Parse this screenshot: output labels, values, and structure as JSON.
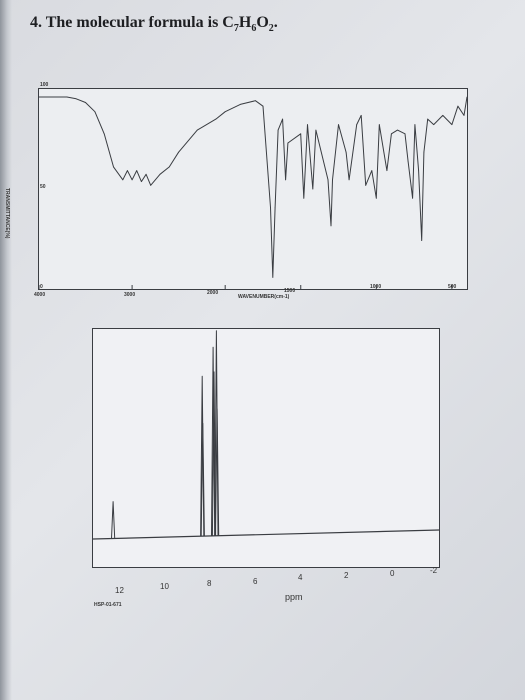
{
  "document": {
    "question_number": "4.",
    "question_text": "The molecular formula is C",
    "formula_parts": [
      "7",
      "H",
      "6",
      "O",
      "2",
      "."
    ]
  },
  "ir_spectrum": {
    "y_axis_label": "TRANSMITTANCE(%)",
    "y_ticks": [
      "100",
      "50",
      "0"
    ],
    "x_ticks": [
      "4000",
      "3000",
      "2000",
      "1500",
      "1000",
      "500"
    ],
    "x_axis_label": "WAVENUMBER(cm-1)"
  },
  "nmr_spectrum": {
    "x_ticks": [
      "12",
      "10",
      "8",
      "6",
      "4",
      "2",
      "0",
      "-2"
    ],
    "x_axis_label": "ppm",
    "code": "HSP-01-671"
  },
  "colors": {
    "trace": "#3a3d42",
    "frame": "#3a3d42",
    "paper": "#e2e4e8"
  },
  "chart_data": [
    {
      "type": "line",
      "title": "",
      "xlabel": "WAVENUMBER(cm-1)",
      "ylabel": "TRANSMITTANCE(%)",
      "xlim": [
        4000,
        400
      ],
      "ylim": [
        0,
        100
      ],
      "grid": false,
      "x": [
        4000,
        3700,
        3600,
        3500,
        3400,
        3300,
        3200,
        3100,
        3050,
        3000,
        2950,
        2900,
        2850,
        2800,
        2700,
        2600,
        2500,
        2300,
        2100,
        2000,
        1900,
        1800,
        1750,
        1700,
        1685,
        1670,
        1650,
        1620,
        1600,
        1585,
        1500,
        1480,
        1455,
        1420,
        1400,
        1320,
        1300,
        1290,
        1250,
        1200,
        1180,
        1130,
        1100,
        1070,
        1030,
        1000,
        980,
        930,
        900,
        860,
        810,
        790,
        760,
        745,
        720,
        700,
        685,
        660,
        620,
        560,
        500,
        460,
        420,
        400
      ],
      "y": [
        100,
        100,
        99,
        97,
        92,
        80,
        62,
        55,
        60,
        55,
        60,
        54,
        58,
        52,
        58,
        62,
        70,
        82,
        88,
        92,
        96,
        98,
        95,
        40,
        2,
        40,
        82,
        88,
        55,
        75,
        80,
        45,
        85,
        50,
        82,
        55,
        30,
        55,
        85,
        70,
        55,
        85,
        90,
        52,
        60,
        45,
        85,
        60,
        80,
        82,
        80,
        65,
        45,
        85,
        60,
        22,
        70,
        88,
        85,
        90,
        85,
        95,
        90,
        100
      ]
    },
    {
      "type": "line",
      "title": "",
      "xlabel": "ppm",
      "ylabel": "",
      "xlim": [
        13,
        -2.5
      ],
      "grid": false,
      "peaks": [
        {
          "shift": 12.1,
          "intensity": 0.18
        },
        {
          "shift": 8.11,
          "intensity": 0.78
        },
        {
          "shift": 8.08,
          "intensity": 0.55
        },
        {
          "shift": 7.62,
          "intensity": 0.92
        },
        {
          "shift": 7.58,
          "intensity": 0.8
        },
        {
          "shift": 7.47,
          "intensity": 1.0
        },
        {
          "shift": 7.44,
          "intensity": 0.62
        }
      ]
    }
  ]
}
